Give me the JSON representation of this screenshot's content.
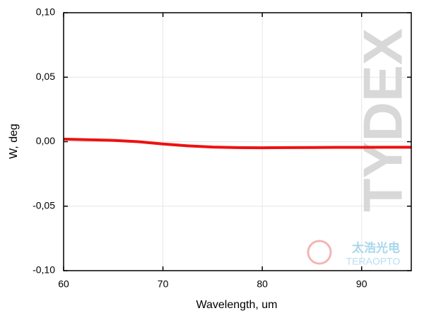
{
  "chart_data": {
    "type": "line",
    "x_label": "Wavelength, um",
    "y_label": "W, deg",
    "watermarks": [
      "TYDEX",
      "太浩光电",
      "TERAOPTO"
    ],
    "x": [
      60,
      62.5,
      65,
      67.5,
      70,
      72.5,
      75,
      77.5,
      80,
      82.5,
      85,
      87.5,
      90,
      92.5,
      95
    ],
    "series": [
      {
        "name": "W",
        "color": "#ee1111",
        "values": [
          0.002,
          0.0015,
          0.001,
          0.0,
          -0.0018,
          -0.0032,
          -0.0042,
          -0.0046,
          -0.0047,
          -0.0046,
          -0.0045,
          -0.0044,
          -0.0044,
          -0.0043,
          -0.0043
        ]
      }
    ],
    "xlim": [
      60,
      95
    ],
    "xticks": [
      60,
      70,
      80,
      90
    ],
    "ylim": [
      -0.1,
      0.1
    ],
    "yticks": [
      {
        "value": -0.1,
        "label": "-0,10"
      },
      {
        "value": -0.05,
        "label": "-0,05"
      },
      {
        "value": 0,
        "label": "0,00"
      },
      {
        "value": 0.05,
        "label": "0,05"
      },
      {
        "value": 0.1,
        "label": "0,10"
      }
    ],
    "grid": true
  }
}
